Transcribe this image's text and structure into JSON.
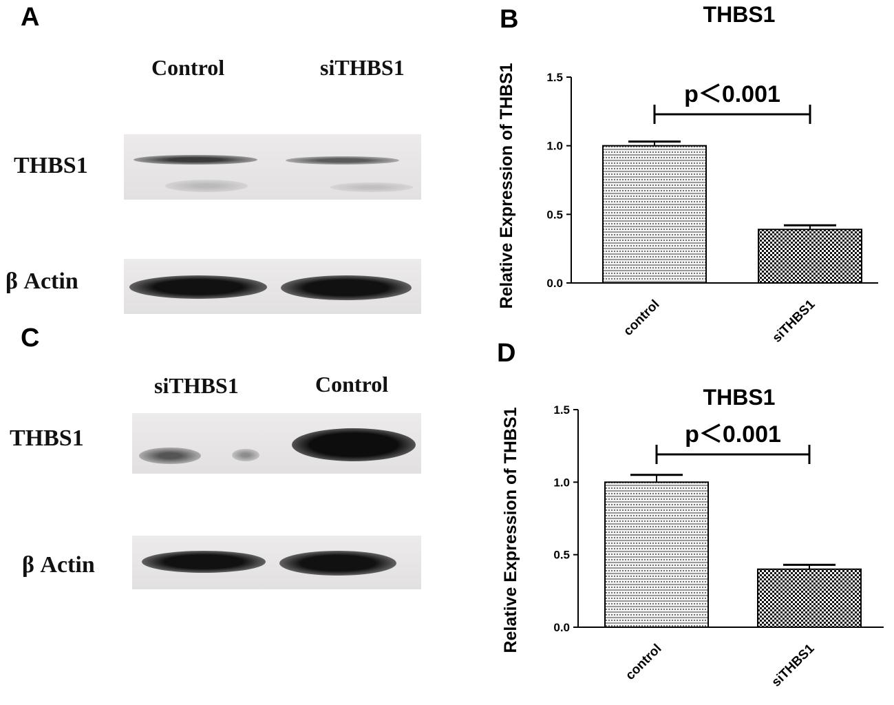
{
  "panels": {
    "A": {
      "letter": "A",
      "lanes": [
        "Control",
        "siTHBS1"
      ],
      "rows": [
        "THBS1",
        "β Actin"
      ]
    },
    "C": {
      "letter": "C",
      "lanes": [
        "siTHBS1",
        "Control"
      ],
      "rows": [
        "THBS1",
        "β Actin"
      ]
    }
  },
  "chart_data": [
    {
      "panel": "B",
      "type": "bar",
      "title": "THBS1",
      "ylabel": "Relative Expression of THBS1",
      "categories": [
        "control",
        "siTHBS1"
      ],
      "values": [
        1.0,
        0.39
      ],
      "errors": [
        0.03,
        0.03
      ],
      "ylim": [
        0,
        1.5
      ],
      "yticks": [
        "0.0",
        "0.5",
        "1.0",
        "1.5"
      ],
      "annotation": "p＜0.001",
      "grid": false
    },
    {
      "panel": "D",
      "type": "bar",
      "title": "THBS1",
      "ylabel": "Relative Expression of THBS1",
      "categories": [
        "control",
        "siTHBS1"
      ],
      "values": [
        1.0,
        0.4
      ],
      "errors": [
        0.05,
        0.03
      ],
      "ylim": [
        0,
        1.5
      ],
      "yticks": [
        "0.0",
        "0.5",
        "1.0",
        "1.5"
      ],
      "annotation": "p＜0.001",
      "grid": false
    }
  ]
}
